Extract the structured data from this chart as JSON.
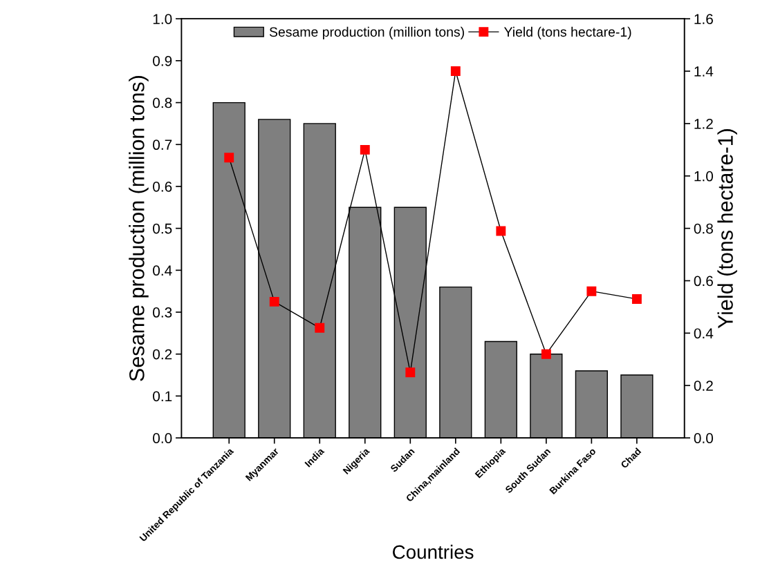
{
  "chart_data": {
    "type": "bar",
    "categories": [
      "United Republic of Tanzania",
      "Myanmar",
      "India",
      "Nigeria",
      "Sudan",
      "China,mainland",
      "Ethiopia",
      "South Sudan",
      "Burkina Faso",
      "Chad"
    ],
    "xlabel": "Countries",
    "ylabel": "Sesame production (million tons)",
    "y2label": "Yield (tons hectare-1)",
    "series": [
      {
        "name": "Sesame production (million tons)",
        "color": "#7f7f7f",
        "values": [
          0.8,
          0.76,
          0.75,
          0.55,
          0.55,
          0.36,
          0.23,
          0.2,
          0.16,
          0.15
        ]
      },
      {
        "name": "Yield (tons hectare-1)",
        "type": "line",
        "axis": "y2",
        "color": "#ff0000",
        "marker": "square",
        "line_style": "solid",
        "values": [
          1.07,
          0.52,
          0.42,
          1.1,
          0.25,
          1.4,
          0.79,
          0.32,
          0.56,
          0.53
        ]
      }
    ],
    "ylim": [
      0,
      1.0
    ],
    "yticks": [
      {
        "value": 0,
        "label": "0.0"
      },
      0.1,
      0.2,
      0.3,
      0.4,
      0.5,
      0.6,
      0.7,
      0.8,
      0.9,
      {
        "value": 1,
        "label": "1.0"
      }
    ],
    "y2lim": [
      0,
      1.6
    ],
    "y2ticks": [
      {
        "value": 0,
        "label": "0.0"
      },
      0.2,
      0.4,
      0.6,
      0.8,
      {
        "value": 1,
        "label": "1.0"
      },
      1.2,
      1.4,
      1.6
    ],
    "grid": false,
    "legend": "top"
  }
}
